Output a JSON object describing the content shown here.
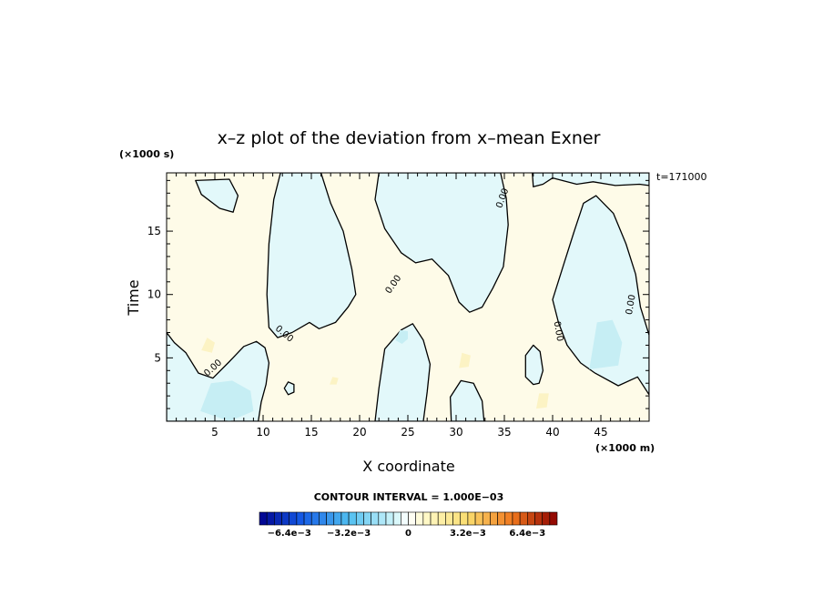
{
  "chart_data": {
    "type": "heatmap",
    "title": "x–z plot of the deviation from x–mean Exner",
    "xlabel": "X coordinate",
    "ylabel": "Time",
    "x_unit": "(×1000 m)",
    "y_unit": "(×1000 s)",
    "time_label": "t=171000",
    "xlim": [
      0,
      50
    ],
    "ylim": [
      0,
      19.6
    ],
    "x_ticks": [
      5,
      10,
      15,
      20,
      25,
      30,
      35,
      40,
      45
    ],
    "y_ticks": [
      5,
      10,
      15
    ],
    "contour_interval_label": "CONTOUR INTERVAL = 1.000E−03",
    "zero_contour_label": "0.00",
    "colorbar": {
      "range": [
        -0.008,
        0.008
      ],
      "tick_labels": [
        "−6.4e−3",
        "−3.2e−3",
        "0",
        "3.2e−3",
        "6.4e−3"
      ],
      "tick_values": [
        -0.0064,
        -0.0032,
        0,
        0.0032,
        0.0064
      ]
    },
    "colors": {
      "negative_region": "#e2f8fa",
      "positive_region": "#fefbe8",
      "negative_spot": "#c6eef4",
      "positive_spot": "#fcf3c4"
    },
    "negative_regions": [
      [
        [
          16,
          19.6
        ],
        [
          17,
          17.2
        ],
        [
          18.3,
          15
        ],
        [
          19.2,
          12
        ],
        [
          19.6,
          10
        ],
        [
          18.8,
          9
        ],
        [
          17.5,
          7.8
        ],
        [
          15.8,
          7.3
        ],
        [
          14.8,
          7.8
        ],
        [
          13,
          7
        ],
        [
          11.5,
          6.6
        ],
        [
          10.6,
          7.4
        ],
        [
          10.4,
          10
        ],
        [
          10.6,
          14
        ],
        [
          11.1,
          17.5
        ],
        [
          11.8,
          19.6
        ]
      ],
      [
        [
          22,
          19.6
        ],
        [
          21.6,
          17.5
        ],
        [
          22.6,
          15.2
        ],
        [
          24.3,
          13.3
        ],
        [
          25.8,
          12.5
        ],
        [
          27.5,
          12.8
        ],
        [
          29.2,
          11.5
        ],
        [
          30.3,
          9.4
        ],
        [
          31.4,
          8.6
        ],
        [
          32.7,
          9
        ],
        [
          33.8,
          10.5
        ],
        [
          34.9,
          12.2
        ],
        [
          35.4,
          15.5
        ],
        [
          35.2,
          17.6
        ],
        [
          34.6,
          19.6
        ]
      ],
      [
        [
          0,
          7
        ],
        [
          0.8,
          6.2
        ],
        [
          2,
          5.4
        ],
        [
          3.3,
          3.8
        ],
        [
          4.8,
          3.4
        ],
        [
          6.5,
          4.7
        ],
        [
          8,
          5.9
        ],
        [
          9.3,
          6.3
        ],
        [
          10.2,
          5.8
        ],
        [
          10.6,
          4.6
        ],
        [
          10.3,
          2.9
        ],
        [
          9.8,
          1.5
        ],
        [
          9.5,
          0
        ],
        [
          0,
          0
        ]
      ],
      [
        [
          21.6,
          0
        ],
        [
          22,
          2.6
        ],
        [
          22.6,
          5.7
        ],
        [
          24.3,
          7.2
        ],
        [
          25.5,
          7.7
        ],
        [
          26.6,
          6.4
        ],
        [
          27.3,
          4.5
        ],
        [
          27,
          2.3
        ],
        [
          26.6,
          0
        ]
      ],
      [
        [
          29.5,
          0
        ],
        [
          29.4,
          1.9
        ],
        [
          30.5,
          3.2
        ],
        [
          31.8,
          3
        ],
        [
          32.7,
          1.6
        ],
        [
          32.9,
          0
        ]
      ],
      [
        [
          37.9,
          19.6
        ],
        [
          38,
          18.5
        ],
        [
          39,
          18.7
        ],
        [
          40,
          19.2
        ],
        [
          42.5,
          18.7
        ],
        [
          44.2,
          18.9
        ],
        [
          46.5,
          18.6
        ],
        [
          49,
          18.7
        ],
        [
          50,
          18.6
        ],
        [
          50,
          19.6
        ]
      ],
      [
        [
          41.5,
          6
        ],
        [
          40.6,
          7.8
        ],
        [
          40,
          9.6
        ],
        [
          41.2,
          12.5
        ],
        [
          42.2,
          14.9
        ],
        [
          43.2,
          17.2
        ],
        [
          44.5,
          17.8
        ],
        [
          46.3,
          16.4
        ],
        [
          47.6,
          14
        ],
        [
          48.6,
          11.6
        ],
        [
          49.1,
          9
        ],
        [
          50,
          6.8
        ],
        [
          50,
          2.1
        ],
        [
          48.8,
          3.5
        ],
        [
          46.8,
          2.8
        ],
        [
          44.4,
          3.8
        ],
        [
          42.9,
          4.6
        ]
      ],
      [
        [
          38,
          2.9
        ],
        [
          37.2,
          3.5
        ],
        [
          37.2,
          5.2
        ],
        [
          38,
          6
        ],
        [
          38.7,
          5.5
        ],
        [
          39,
          4
        ],
        [
          38.6,
          3
        ]
      ],
      [
        [
          3,
          19
        ],
        [
          6.5,
          19.1
        ],
        [
          7.4,
          17.8
        ],
        [
          6.9,
          16.5
        ],
        [
          5.5,
          16.8
        ],
        [
          3.6,
          17.9
        ]
      ],
      [
        [
          12.2,
          2.6
        ],
        [
          12.6,
          2.1
        ],
        [
          13.2,
          2.3
        ],
        [
          13.2,
          2.9
        ],
        [
          12.6,
          3.1
        ]
      ]
    ],
    "negative_spots": [
      [
        [
          3.5,
          0.8
        ],
        [
          4.6,
          3
        ],
        [
          6.8,
          3.2
        ],
        [
          8.7,
          2.4
        ],
        [
          9,
          0.8
        ],
        [
          6.5,
          0
        ]
      ],
      [
        [
          43.8,
          4.1
        ],
        [
          44.6,
          7.8
        ],
        [
          46.2,
          8
        ],
        [
          47.2,
          6.2
        ],
        [
          46.8,
          4.4
        ]
      ],
      [
        [
          23.7,
          6.4
        ],
        [
          24.2,
          7.2
        ],
        [
          25,
          7.1
        ],
        [
          25,
          6.5
        ],
        [
          24.4,
          6.1
        ]
      ]
    ],
    "positive_spots": [
      [
        [
          3.6,
          5.6
        ],
        [
          4.2,
          6.6
        ],
        [
          5,
          6.2
        ],
        [
          4.7,
          5.4
        ]
      ],
      [
        [
          30.3,
          4.2
        ],
        [
          30.6,
          5.4
        ],
        [
          31.5,
          5.2
        ],
        [
          31.3,
          4.3
        ]
      ],
      [
        [
          38.3,
          1
        ],
        [
          38.6,
          2.2
        ],
        [
          39.6,
          2.2
        ],
        [
          39.4,
          1.1
        ]
      ],
      [
        [
          16.9,
          2.9
        ],
        [
          17.2,
          3.5
        ],
        [
          17.8,
          3.4
        ],
        [
          17.6,
          2.9
        ]
      ]
    ]
  }
}
